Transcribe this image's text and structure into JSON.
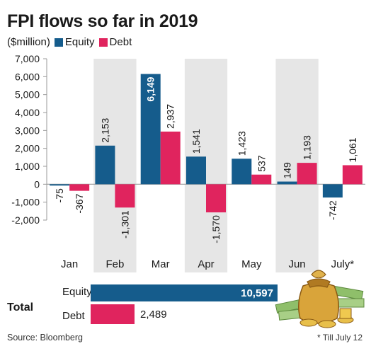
{
  "title": "FPI flows so far in 2019",
  "unit": "($million)",
  "legend": {
    "equity": "Equity",
    "debt": "Debt"
  },
  "colors": {
    "equity": "#155c8c",
    "debt": "#e0245e",
    "shade": "#e6e6e6",
    "axis": "#999999"
  },
  "chart_data": {
    "type": "bar",
    "categories": [
      "Jan",
      "Feb",
      "Mar",
      "Apr",
      "May",
      "Jun",
      "July*"
    ],
    "series": [
      {
        "name": "Equity",
        "values": [
          -75,
          2153,
          6149,
          1541,
          1423,
          149,
          -742
        ]
      },
      {
        "name": "Debt",
        "values": [
          -367,
          -1301,
          2937,
          -1570,
          537,
          1193,
          1061
        ]
      }
    ],
    "value_labels": {
      "Equity": [
        "-75",
        "2,153",
        "6,149",
        "1,541",
        "1,423",
        "149",
        "-742"
      ],
      "Debt": [
        "-367",
        "-1,301",
        "2,937",
        "-1,570",
        "537",
        "1,193",
        "1,061"
      ]
    },
    "yticks": [
      7000,
      6000,
      5000,
      4000,
      3000,
      2000,
      1000,
      0,
      -1000,
      -2000
    ],
    "ytick_labels": [
      "7,000",
      "6,000",
      "5,000",
      "4,000",
      "3,000",
      "2,000",
      "1,000",
      "0",
      "-1,000",
      "-2,000"
    ],
    "ylim": [
      -2000,
      7000
    ],
    "shaded_categories": [
      "Feb",
      "Apr",
      "Jun"
    ]
  },
  "totals": {
    "label": "Total",
    "equity_label": "Equity",
    "equity_value": 10597,
    "equity_text": "10,597",
    "debt_label": "Debt",
    "debt_value": 2489,
    "debt_text": "2,489"
  },
  "source": "Source: Bloomberg",
  "footnote": "* Till July 12"
}
